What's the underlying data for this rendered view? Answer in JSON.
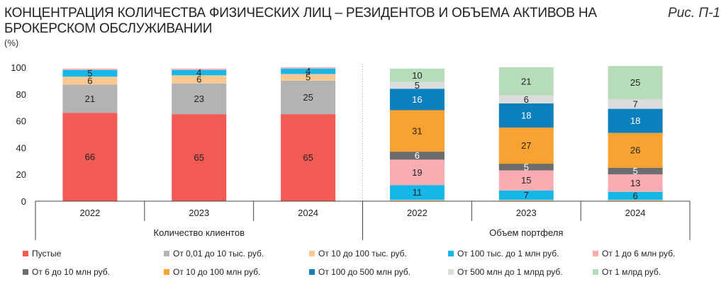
{
  "title": "КОНЦЕНТРАЦИЯ КОЛИЧЕСТВА ФИЗИЧЕСКИХ ЛИЦ – РЕЗИДЕНТОВ И ОБЪЕМА АКТИВОВ НА БРОКЕРСКОМ ОБСЛУЖИВАНИИ",
  "figure_label": "Рис. П-1",
  "unit": "(%)",
  "chart_data": {
    "type": "bar",
    "stacked": true,
    "ylim": [
      0,
      100
    ],
    "yticks": [
      "0",
      "20",
      "40",
      "60",
      "80",
      "100"
    ],
    "groups": [
      "Количество клиентов",
      "Объем портфеля"
    ],
    "categories": [
      "2022",
      "2023",
      "2024",
      "2022",
      "2023",
      "2024"
    ],
    "series": [
      {
        "name": "Пустые",
        "color": "#f25a55",
        "values": [
          66,
          65,
          65,
          0,
          0,
          0
        ]
      },
      {
        "name": "От 0,01 до 10 тыс. руб.",
        "color": "#b3b3b3",
        "values": [
          21,
          23,
          25,
          0,
          0,
          0
        ]
      },
      {
        "name": "От 10 до 100 тыс. руб.",
        "color": "#fbc892",
        "values": [
          6,
          6,
          5,
          1,
          1,
          1
        ]
      },
      {
        "name": "От 100 тыс. до 1 млн руб.",
        "color": "#15b6e8",
        "values": [
          5,
          4,
          4,
          11,
          7,
          6
        ]
      },
      {
        "name": "От 1 до 6 млн руб.",
        "color": "#f9adb3",
        "values": [
          1,
          1,
          1,
          19,
          15,
          13
        ]
      },
      {
        "name": "От 6 до 10 млн руб.",
        "color": "#6d6d6d",
        "values": [
          0,
          0,
          0,
          6,
          5,
          5
        ]
      },
      {
        "name": "От 10 до 100 млн руб.",
        "color": "#f8a231",
        "values": [
          0,
          0,
          0,
          31,
          27,
          26
        ]
      },
      {
        "name": "От 100 до 500 млн руб.",
        "color": "#0b80bc",
        "values": [
          0,
          0,
          0,
          16,
          18,
          18
        ]
      },
      {
        "name": "От 500 млн до 1 млрд руб.",
        "color": "#dcdcdc",
        "values": [
          0,
          0,
          0,
          5,
          6,
          7
        ]
      },
      {
        "name": "От 1 млрд руб.",
        "color": "#b7dcba",
        "values": [
          0,
          0,
          0,
          10,
          21,
          25
        ]
      }
    ],
    "labels": [
      {
        "bar": 0,
        "series": 0,
        "text": "66"
      },
      {
        "bar": 0,
        "series": 1,
        "text": "21"
      },
      {
        "bar": 0,
        "series": 2,
        "text": "6"
      },
      {
        "bar": 0,
        "series": 3,
        "text": "5"
      },
      {
        "bar": 1,
        "series": 0,
        "text": "65"
      },
      {
        "bar": 1,
        "series": 1,
        "text": "23"
      },
      {
        "bar": 1,
        "series": 2,
        "text": "6"
      },
      {
        "bar": 1,
        "series": 3,
        "text": "4"
      },
      {
        "bar": 2,
        "series": 0,
        "text": "65"
      },
      {
        "bar": 2,
        "series": 1,
        "text": "25"
      },
      {
        "bar": 2,
        "series": 2,
        "text": "5"
      },
      {
        "bar": 2,
        "series": 3,
        "text": "4"
      },
      {
        "bar": 3,
        "series": 3,
        "text": "11"
      },
      {
        "bar": 3,
        "series": 4,
        "text": "19"
      },
      {
        "bar": 3,
        "series": 5,
        "text": "6"
      },
      {
        "bar": 3,
        "series": 6,
        "text": "31"
      },
      {
        "bar": 3,
        "series": 7,
        "text": "16"
      },
      {
        "bar": 3,
        "series": 8,
        "text": "5"
      },
      {
        "bar": 3,
        "series": 9,
        "text": "10"
      },
      {
        "bar": 4,
        "series": 3,
        "text": "7"
      },
      {
        "bar": 4,
        "series": 4,
        "text": "15"
      },
      {
        "bar": 4,
        "series": 5,
        "text": "5"
      },
      {
        "bar": 4,
        "series": 6,
        "text": "27"
      },
      {
        "bar": 4,
        "series": 7,
        "text": "18"
      },
      {
        "bar": 4,
        "series": 8,
        "text": "6"
      },
      {
        "bar": 4,
        "series": 9,
        "text": "21"
      },
      {
        "bar": 5,
        "series": 3,
        "text": "6"
      },
      {
        "bar": 5,
        "series": 4,
        "text": "13"
      },
      {
        "bar": 5,
        "series": 5,
        "text": "5"
      },
      {
        "bar": 5,
        "series": 6,
        "text": "26"
      },
      {
        "bar": 5,
        "series": 7,
        "text": "18"
      },
      {
        "bar": 5,
        "series": 8,
        "text": "7"
      },
      {
        "bar": 5,
        "series": 9,
        "text": "25"
      }
    ]
  }
}
